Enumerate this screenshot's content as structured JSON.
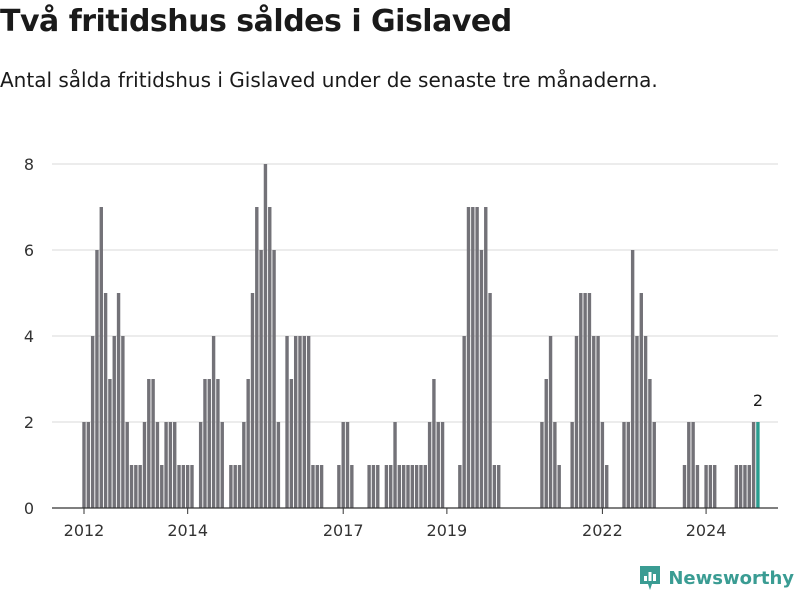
{
  "title": "Två fritidshus såldes i Gislaved",
  "subtitle": "Antal sålda fritidshus i Gislaved under de senaste tre månaderna.",
  "brand": "Newsworthy",
  "colors": {
    "bar": "#737278",
    "highlight": "#2a9d8f",
    "grid": "#d9d9d9",
    "brand": "#3a9c93"
  },
  "chart_data": {
    "type": "bar",
    "ylim": [
      0,
      8
    ],
    "yticks": [
      0,
      2,
      4,
      6,
      8
    ],
    "xticks": [
      "2012",
      "2014",
      "2017",
      "2019",
      "2022",
      "2024"
    ],
    "x_start": "2012-01",
    "values": [
      2,
      2,
      4,
      6,
      7,
      5,
      3,
      4,
      5,
      4,
      2,
      1,
      1,
      1,
      2,
      3,
      3,
      2,
      1,
      2,
      2,
      2,
      1,
      1,
      1,
      1,
      0,
      2,
      3,
      3,
      4,
      3,
      2,
      0,
      1,
      1,
      1,
      2,
      3,
      5,
      7,
      6,
      8,
      7,
      6,
      2,
      0,
      4,
      3,
      4,
      4,
      4,
      4,
      1,
      1,
      1,
      0,
      0,
      0,
      1,
      2,
      2,
      1,
      0,
      0,
      0,
      1,
      1,
      1,
      0,
      1,
      1,
      2,
      1,
      1,
      1,
      1,
      1,
      1,
      1,
      2,
      3,
      2,
      2,
      0,
      0,
      0,
      1,
      4,
      7,
      7,
      7,
      6,
      7,
      5,
      1,
      1,
      0,
      0,
      0,
      0,
      0,
      0,
      0,
      0,
      0,
      2,
      3,
      4,
      2,
      1,
      0,
      0,
      2,
      4,
      5,
      5,
      5,
      4,
      4,
      2,
      1,
      0,
      0,
      0,
      2,
      2,
      6,
      4,
      5,
      4,
      3,
      2,
      0,
      0,
      0,
      0,
      0,
      0,
      1,
      2,
      2,
      1,
      0,
      1,
      1,
      1,
      0,
      0,
      0,
      0,
      1,
      1,
      1,
      1,
      2,
      2
    ],
    "highlight_label": "2"
  }
}
